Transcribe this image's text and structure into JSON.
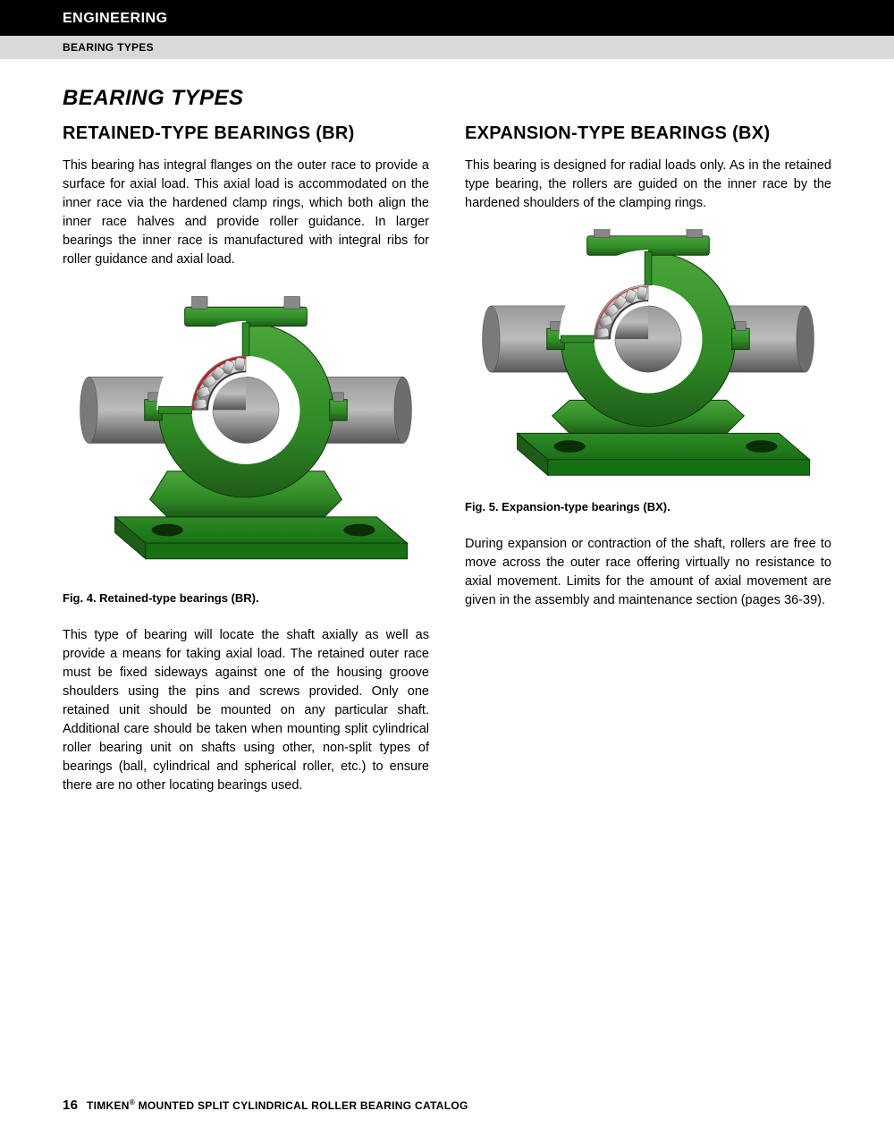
{
  "header": {
    "black_title": "ENGINEERING",
    "gray_subtitle": "BEARING TYPES"
  },
  "page_heading": "BEARING TYPES",
  "left": {
    "heading": "RETAINED-TYPE BEARINGS (BR)",
    "para1": "This bearing has integral flanges on the outer race to provide a surface for axial load. This axial load is accommodated on the inner race via the hardened clamp rings, which both align the inner race halves and provide roller guidance. In larger bearings the inner race is manufactured with integral ribs for roller guidance and axial load.",
    "fig_caption": "Fig. 4. Retained-type bearings (BR).",
    "para2": "This type of bearing will locate the shaft axially as well as provide a means for taking axial load. The retained outer race must be fixed sideways against one of the housing groove shoulders using the pins and screws provided. Only one retained unit should be mounted on any particular shaft. Additional care should be taken when mounting split cylindrical roller bearing unit on shafts using other, non-split types of bearings (ball, cylindrical and spherical roller, etc.) to ensure there are no other locating bearings used."
  },
  "right": {
    "heading": "EXPANSION-TYPE BEARINGS (BX)",
    "para1": "This bearing is designed for radial loads only. As in the retained type bearing, the rollers are guided on the inner race by the hardened shoulders of the clamping rings.",
    "fig_caption": "Fig. 5. Expansion-type bearings (BX).",
    "para2": "During expansion or contraction of the shaft, rollers are free to move across the outer race offering virtually no resistance to axial movement. Limits for the amount of axial movement are given in the assembly and maintenance section (pages 36-39)."
  },
  "footer": {
    "page_number": "16",
    "brand": "TIMKEN",
    "reg": "®",
    "catalog": " MOUNTED SPLIT CYLINDRICAL ROLLER BEARING CATALOG"
  },
  "figure_style": {
    "housing_green_light": "#4aa63a",
    "housing_green_mid": "#2f8a26",
    "housing_green_dark": "#1e5c18",
    "base_green": "#187014",
    "shaft_gray_light": "#9a9a9a",
    "shaft_gray_mid": "#7a7a7a",
    "shaft_gray_dark": "#555555",
    "bolt_gray": "#888888",
    "roller_gray": "#c7c7c7",
    "roller_edge": "#6b6b6b",
    "accent_red": "#b82020",
    "edge_dark": "#0d3a0a"
  }
}
